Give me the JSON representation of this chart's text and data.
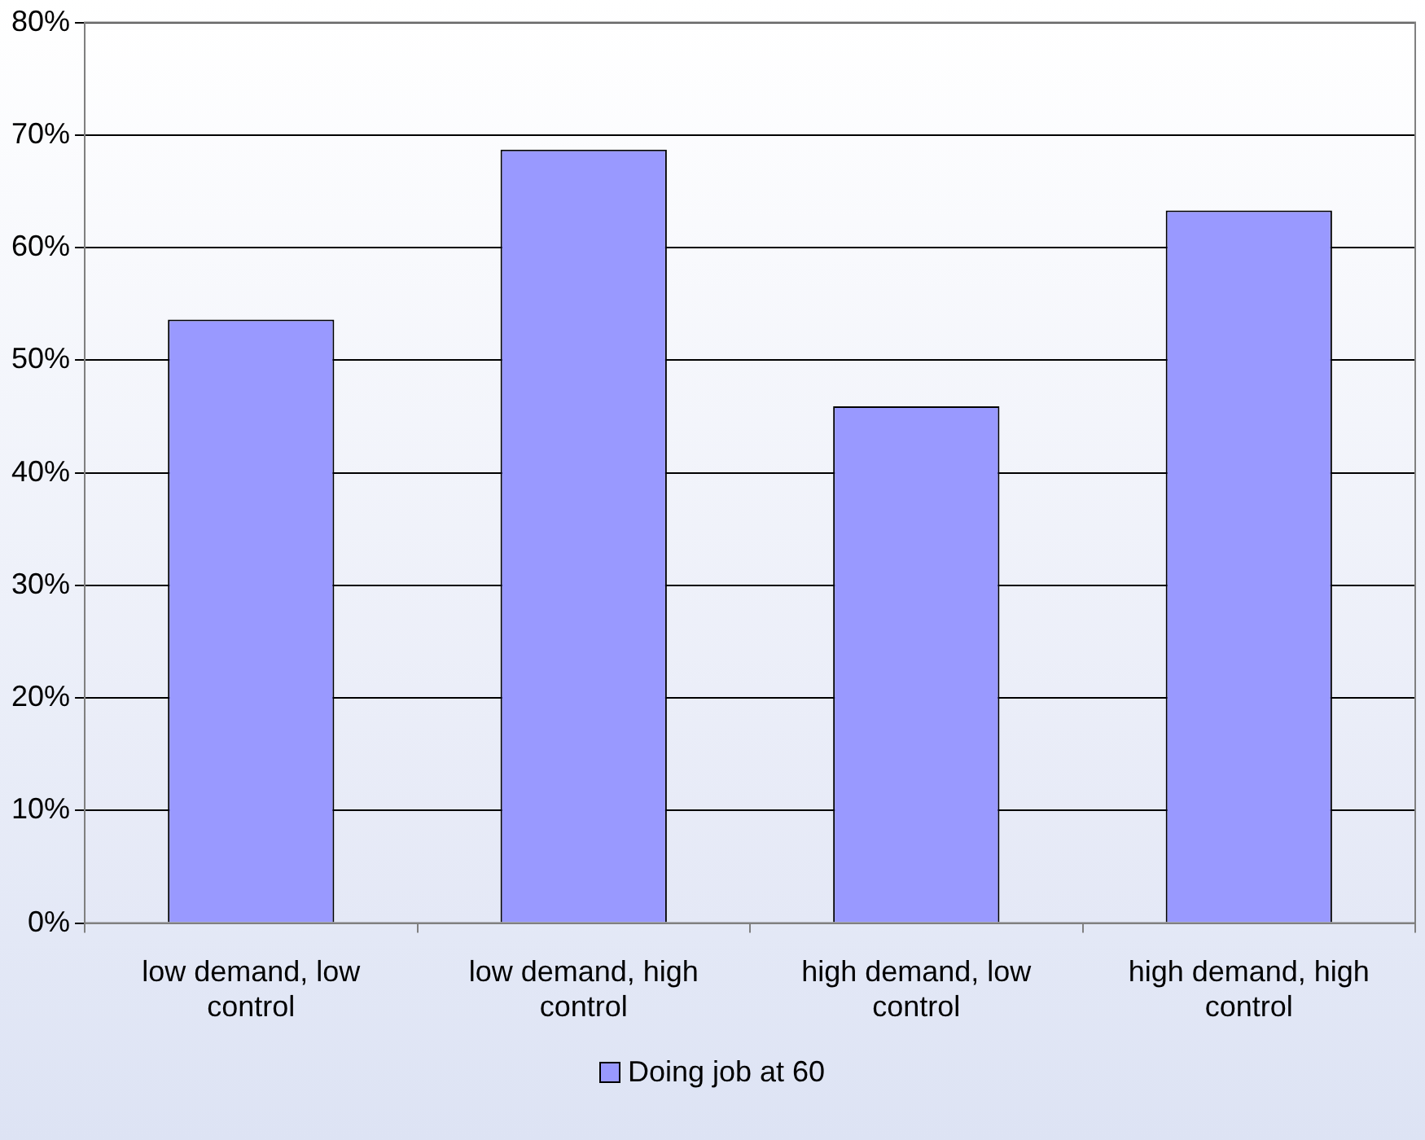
{
  "chart_data": {
    "type": "bar",
    "categories": [
      "low demand, low control",
      "low demand, high control",
      "high demand, low control",
      "high demand, high control"
    ],
    "series": [
      {
        "name": "Doing job at 60",
        "color": "#9999ff",
        "values": [
          53.6,
          68.7,
          45.9,
          63.3
        ]
      }
    ],
    "ylim": [
      0,
      80
    ],
    "yticks": [
      {
        "value": 0,
        "label": "0%"
      },
      {
        "value": 10,
        "label": "10%"
      },
      {
        "value": 20,
        "label": "20%"
      },
      {
        "value": 30,
        "label": "30%"
      },
      {
        "value": 40,
        "label": "40%"
      },
      {
        "value": 50,
        "label": "50%"
      },
      {
        "value": 60,
        "label": "60%"
      },
      {
        "value": 70,
        "label": "70%"
      },
      {
        "value": 80,
        "label": "80%"
      }
    ],
    "grid": "y",
    "legend": "bottom"
  }
}
